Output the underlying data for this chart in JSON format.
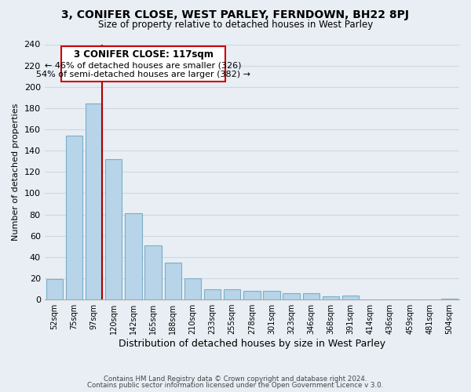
{
  "title": "3, CONIFER CLOSE, WEST PARLEY, FERNDOWN, BH22 8PJ",
  "subtitle": "Size of property relative to detached houses in West Parley",
  "xlabel": "Distribution of detached houses by size in West Parley",
  "ylabel": "Number of detached properties",
  "bar_color": "#b8d4e8",
  "bar_edge_color": "#7aaec8",
  "categories": [
    "52sqm",
    "75sqm",
    "97sqm",
    "120sqm",
    "142sqm",
    "165sqm",
    "188sqm",
    "210sqm",
    "233sqm",
    "255sqm",
    "278sqm",
    "301sqm",
    "323sqm",
    "346sqm",
    "368sqm",
    "391sqm",
    "414sqm",
    "436sqm",
    "459sqm",
    "481sqm",
    "504sqm"
  ],
  "values": [
    19,
    154,
    184,
    132,
    81,
    51,
    35,
    20,
    10,
    10,
    8,
    8,
    6,
    6,
    3,
    4,
    0,
    0,
    0,
    0,
    1
  ],
  "ylim": [
    0,
    240
  ],
  "yticks": [
    0,
    20,
    40,
    60,
    80,
    100,
    120,
    140,
    160,
    180,
    200,
    220,
    240
  ],
  "vline_x_index": 2,
  "vline_color": "#aa0000",
  "annotation_title": "3 CONIFER CLOSE: 117sqm",
  "annotation_line1": "← 46% of detached houses are smaller (326)",
  "annotation_line2": "54% of semi-detached houses are larger (382) →",
  "annotation_box_color": "#ffffff",
  "annotation_box_edge": "#cc0000",
  "footer1": "Contains HM Land Registry data © Crown copyright and database right 2024.",
  "footer2": "Contains public sector information licensed under the Open Government Licence v 3.0.",
  "background_color": "#e8eef4",
  "grid_color": "#ccd8e4",
  "fig_width": 6.0,
  "fig_height": 5.0
}
